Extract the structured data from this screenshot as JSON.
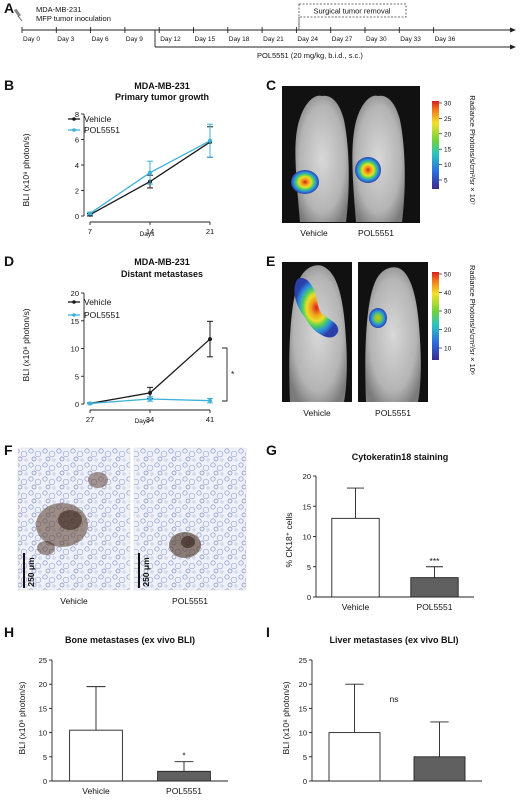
{
  "colors": {
    "vehicle": "#1a1a1a",
    "pol": "#3db0d9",
    "bar_vehicle": "#ffffff",
    "bar_pol": "#606060"
  },
  "panels": {
    "A": {
      "letter": "A",
      "cell_line": "MDA-MB-231",
      "inoculation": "MFP tumor inoculation",
      "days": [
        "Day 0",
        "Day 3",
        "Day 6",
        "Day 9",
        "Day 12",
        "Day 15",
        "Day 18",
        "Day 21",
        "Day 24",
        "Day 27",
        "Day 30",
        "Day 33",
        "Day 36"
      ],
      "surgery": "Surgical tumor removal",
      "treatment": "POL5551 (20 mg/kg, b.i.d., s.c.)"
    },
    "B": {
      "letter": "B",
      "title1": "MDA-MB-231",
      "title2": "Primary tumor growth",
      "ylabel": "BLI (x10⁹ photon/s)",
      "xlabel": "Days",
      "legend": [
        "Vehicle",
        "POL5551"
      ]
    },
    "C": {
      "letter": "C",
      "labels": [
        "Vehicle",
        "POL5551"
      ],
      "colorbar_ticks": [
        "30",
        "25",
        "20",
        "15",
        "10",
        "5"
      ],
      "colorbar_label": "Radiance Photons/s/cm²/sr × 10⁷"
    },
    "D": {
      "letter": "D",
      "title1": "MDA-MB-231",
      "title2": "Distant metastases",
      "ylabel": "BLI (x10⁸ photon/s)",
      "xlabel": "Days",
      "legend": [
        "Vehicle",
        "POL5551"
      ],
      "sig": "*"
    },
    "E": {
      "letter": "E",
      "labels": [
        "Vehicle",
        "POL5551"
      ],
      "colorbar_ticks": [
        "50",
        "40",
        "30",
        "20",
        "10"
      ],
      "colorbar_label": "Radiance Photons/s/cm²/sr × 10⁶"
    },
    "F": {
      "letter": "F",
      "labels": [
        "Vehicle",
        "POL5551"
      ],
      "scale": "250 μm"
    },
    "G": {
      "letter": "G",
      "title": "Cytokeratin18 staining",
      "ylabel": "% CK18⁺ cells",
      "sig": "***"
    },
    "H": {
      "letter": "H",
      "title": "Bone metastases (ex vivo BLI)",
      "ylabel": "BLI (x10⁶ photon/s)",
      "sig": "*"
    },
    "I": {
      "letter": "I",
      "title": "Liver metastases (ex vivo BLI)",
      "ylabel": "BLI (x10⁸ photon/s)",
      "sig": "ns"
    }
  },
  "chart_data": [
    {
      "id": "B",
      "type": "line",
      "title": "MDA-MB-231 Primary tumor growth",
      "xlabel": "Days",
      "ylabel": "BLI (x10⁹ photon/s)",
      "x": [
        7,
        14,
        21
      ],
      "ylim": [
        0,
        8
      ],
      "yticks": [
        0,
        2,
        4,
        6,
        8
      ],
      "series": [
        {
          "name": "Vehicle",
          "values": [
            0.1,
            2.7,
            5.8
          ],
          "err": [
            0.1,
            0.5,
            1.2
          ]
        },
        {
          "name": "POL5551",
          "values": [
            0.2,
            3.4,
            5.9
          ],
          "err": [
            0.1,
            0.9,
            1.3
          ]
        }
      ]
    },
    {
      "id": "D",
      "type": "line",
      "title": "MDA-MB-231 Distant metastases",
      "xlabel": "Days",
      "ylabel": "BLI (x10⁸ photon/s)",
      "x": [
        27,
        34,
        41
      ],
      "ylim": [
        0,
        20
      ],
      "yticks": [
        0,
        5,
        10,
        15,
        20
      ],
      "series": [
        {
          "name": "Vehicle",
          "values": [
            0.1,
            2.0,
            11.7
          ],
          "err": [
            0.1,
            1.0,
            3.2
          ]
        },
        {
          "name": "POL5551",
          "values": [
            0.1,
            0.9,
            0.6
          ],
          "err": [
            0.1,
            0.4,
            0.4
          ]
        }
      ]
    },
    {
      "id": "G",
      "type": "bar",
      "title": "Cytokeratin18 staining",
      "ylabel": "% CK18⁺ cells",
      "categories": [
        "Vehicle",
        "POL5551"
      ],
      "values": [
        13,
        3.2
      ],
      "err": [
        5,
        1.8
      ],
      "ylim": [
        0,
        20
      ],
      "yticks": [
        0,
        5,
        10,
        15,
        20
      ]
    },
    {
      "id": "H",
      "type": "bar",
      "title": "Bone metastases (ex vivo BLI)",
      "ylabel": "BLI (x10⁶ photon/s)",
      "categories": [
        "Vehicle",
        "POL5551"
      ],
      "values": [
        10.5,
        2
      ],
      "err": [
        9,
        2
      ],
      "ylim": [
        0,
        25
      ],
      "yticks": [
        0,
        5,
        10,
        15,
        20,
        25
      ]
    },
    {
      "id": "I",
      "type": "bar",
      "title": "Liver metastases (ex vivo BLI)",
      "ylabel": "BLI (x10⁸ photon/s)",
      "categories": [
        "",
        ""
      ],
      "values": [
        10,
        5
      ],
      "err": [
        10,
        7.2
      ],
      "ylim": [
        0,
        25
      ],
      "yticks": [
        0,
        5,
        10,
        15,
        20,
        25
      ]
    }
  ]
}
